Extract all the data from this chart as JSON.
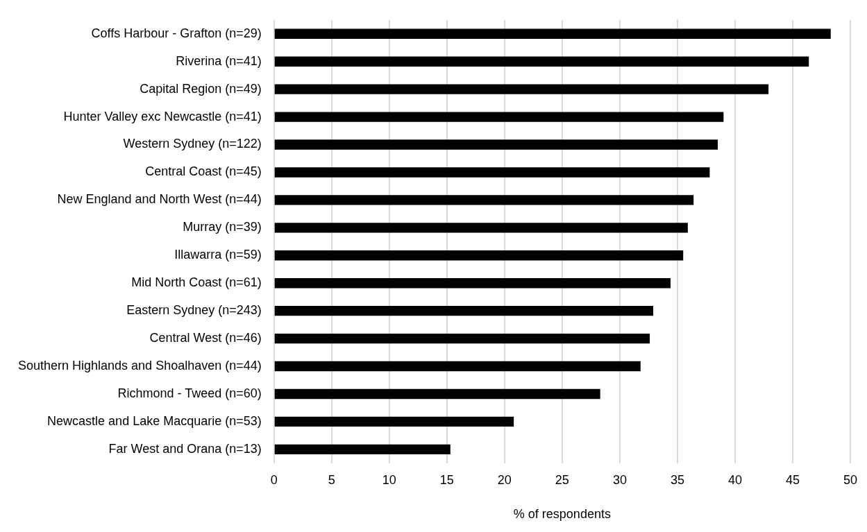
{
  "chart_data": {
    "type": "bar",
    "orientation": "horizontal",
    "xlabel": "% of respondents",
    "categories": [
      "Coffs Harbour - Grafton (n=29)",
      "Riverina (n=41)",
      "Capital Region (n=49)",
      "Hunter Valley exc Newcastle (n=41)",
      "Western Sydney (n=122)",
      "Central Coast (n=45)",
      "New England and North West (n=44)",
      "Murray (n=39)",
      "Illawarra (n=59)",
      "Mid North Coast (n=61)",
      "Eastern Sydney (n=243)",
      "Central West (n=46)",
      "Southern Highlands and Shoalhaven (n=44)",
      "Richmond - Tweed (n=60)",
      "Newcastle and Lake Macquarie (n=53)",
      "Far West and Orana (n=13)"
    ],
    "values": [
      48.3,
      46.4,
      42.9,
      39.0,
      38.5,
      37.8,
      36.4,
      35.9,
      35.5,
      34.4,
      32.9,
      32.6,
      31.8,
      28.3,
      20.8,
      15.3
    ],
    "color": "#000000",
    "xlim": [
      0,
      50
    ],
    "xticks": [
      0,
      5,
      10,
      15,
      20,
      25,
      30,
      35,
      40,
      45,
      50
    ],
    "grid": "x",
    "legend": false
  }
}
